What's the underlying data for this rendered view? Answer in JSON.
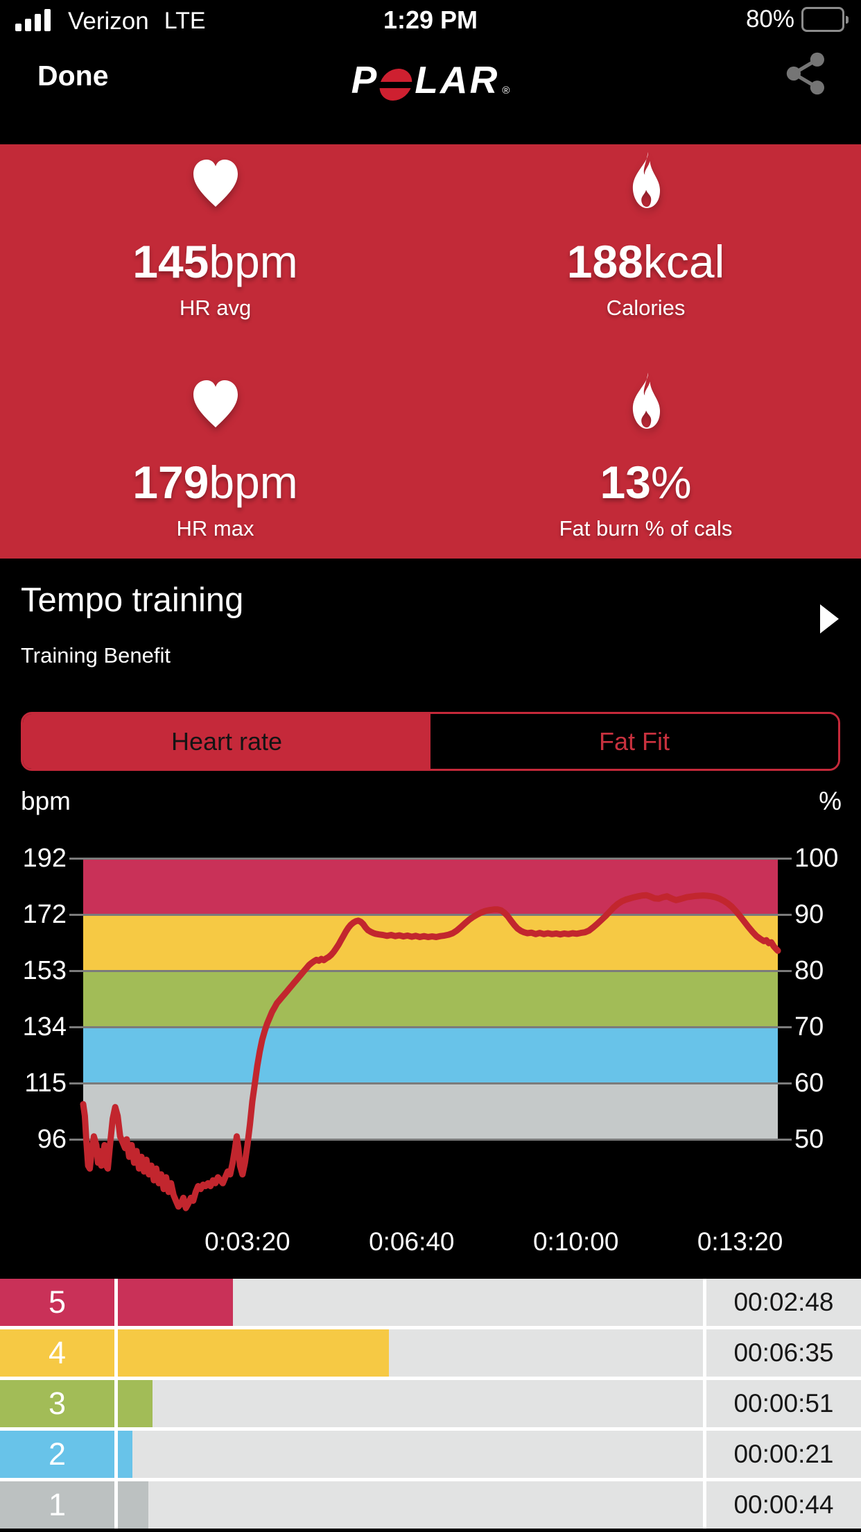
{
  "status_bar": {
    "carrier": "Verizon",
    "network": "LTE",
    "time": "1:29 PM",
    "battery_percent": "80%",
    "battery_level": 0.8,
    "signal_bars": 4
  },
  "nav": {
    "done_label": "Done",
    "logo": {
      "before_o": "P",
      "after_o": "LAR",
      "registered": "®",
      "o_color": "#ce2030"
    }
  },
  "stats": {
    "panel_color": "#c22a38",
    "cells": [
      {
        "icon": "heart-icon",
        "value": "145",
        "unit": "bpm",
        "label": "HR avg"
      },
      {
        "icon": "flame-icon",
        "value": "188",
        "unit": "kcal",
        "label": "Calories"
      },
      {
        "icon": "heart-icon",
        "value": "179",
        "unit": "bpm",
        "label": "HR max"
      },
      {
        "icon": "flame-icon",
        "value": "13",
        "unit": "%",
        "label": "Fat burn % of cals"
      }
    ]
  },
  "session": {
    "title": "Tempo training",
    "subtitle": "Training Benefit"
  },
  "tabs": {
    "accent": "#c5293a",
    "options": [
      {
        "label": "Heart rate",
        "selected": true
      },
      {
        "label": "Fat Fit",
        "selected": false
      }
    ]
  },
  "chart_data": {
    "type": "line",
    "title": "Heart rate curve over training session",
    "left_axis": {
      "unit": "bpm",
      "ticks": [
        192,
        172,
        153,
        134,
        115,
        96
      ]
    },
    "right_axis": {
      "unit": "%",
      "ticks": [
        100,
        90,
        80,
        70,
        60,
        50
      ]
    },
    "x_axis": {
      "tick_labels": [
        "0:03:20",
        "0:06:40",
        "0:10:00",
        "0:13:20"
      ],
      "tick_seconds": [
        200,
        400,
        600,
        800
      ]
    },
    "ylim_bpm": [
      96,
      192
    ],
    "zone_bands": [
      {
        "zone": 5,
        "color": "#c93158",
        "pct_range": [
          90,
          100
        ]
      },
      {
        "zone": 4,
        "color": "#f6c944",
        "pct_range": [
          80,
          90
        ]
      },
      {
        "zone": 3,
        "color": "#a2bc57",
        "pct_range": [
          70,
          80
        ]
      },
      {
        "zone": 2,
        "color": "#68c3e9",
        "pct_range": [
          60,
          70
        ]
      },
      {
        "zone": 1,
        "color": "#c5c9c9",
        "pct_range": [
          50,
          60
        ]
      }
    ],
    "line_color": "#c2262e",
    "gridline_color": "#7b7b7b",
    "series": [
      {
        "name": "heart_rate_bpm",
        "points": [
          [
            0,
            108
          ],
          [
            2,
            104
          ],
          [
            4,
            95
          ],
          [
            6,
            87
          ],
          [
            8,
            86
          ],
          [
            10,
            91
          ],
          [
            13,
            97
          ],
          [
            16,
            94
          ],
          [
            18,
            88
          ],
          [
            20,
            92
          ],
          [
            22,
            87
          ],
          [
            24,
            90
          ],
          [
            26,
            94
          ],
          [
            28,
            87
          ],
          [
            30,
            86
          ],
          [
            33,
            95
          ],
          [
            36,
            103
          ],
          [
            39,
            107
          ],
          [
            42,
            104
          ],
          [
            45,
            97
          ],
          [
            48,
            95
          ],
          [
            51,
            93
          ],
          [
            53,
            96
          ],
          [
            56,
            90
          ],
          [
            59,
            94
          ],
          [
            62,
            88
          ],
          [
            65,
            92
          ],
          [
            68,
            86
          ],
          [
            71,
            90
          ],
          [
            74,
            85
          ],
          [
            77,
            89
          ],
          [
            80,
            84
          ],
          [
            83,
            87
          ],
          [
            86,
            82
          ],
          [
            89,
            86
          ],
          [
            92,
            81
          ],
          [
            95,
            84
          ],
          [
            98,
            79
          ],
          [
            101,
            83
          ],
          [
            104,
            78
          ],
          [
            107,
            81
          ],
          [
            110,
            77
          ],
          [
            113,
            75
          ],
          [
            116,
            73
          ],
          [
            119,
            74
          ],
          [
            122,
            76
          ],
          [
            125,
            72.5
          ],
          [
            128,
            74
          ],
          [
            131,
            76
          ],
          [
            134,
            75
          ],
          [
            137,
            78
          ],
          [
            140,
            80
          ],
          [
            143,
            79
          ],
          [
            146,
            80.5
          ],
          [
            149,
            80
          ],
          [
            152,
            81
          ],
          [
            155,
            80
          ],
          [
            158,
            82
          ],
          [
            161,
            81
          ],
          [
            164,
            83
          ],
          [
            167,
            82
          ],
          [
            170,
            81
          ],
          [
            173,
            83
          ],
          [
            176,
            85
          ],
          [
            179,
            84
          ],
          [
            182,
            88
          ],
          [
            185,
            93
          ],
          [
            187,
            97
          ],
          [
            189,
            93
          ],
          [
            191,
            87
          ],
          [
            194,
            84
          ],
          [
            197,
            88
          ],
          [
            200,
            94
          ],
          [
            203,
            101
          ],
          [
            206,
            109
          ],
          [
            209,
            115
          ],
          [
            212,
            121
          ],
          [
            215,
            126
          ],
          [
            218,
            130
          ],
          [
            221,
            133
          ],
          [
            224,
            135.5
          ],
          [
            227,
            137.5
          ],
          [
            230,
            139.5
          ],
          [
            233,
            141
          ],
          [
            236,
            142.5
          ],
          [
            239,
            143.5
          ],
          [
            242,
            144.5
          ],
          [
            245,
            145.5
          ],
          [
            248,
            146.5
          ],
          [
            251,
            147.5
          ],
          [
            254,
            148.5
          ],
          [
            257,
            149.5
          ],
          [
            260,
            150.5
          ],
          [
            263,
            151.5
          ],
          [
            266,
            152.5
          ],
          [
            269,
            153.5
          ],
          [
            272,
            154.5
          ],
          [
            275,
            155.5
          ],
          [
            278,
            156.2
          ],
          [
            281,
            156.8
          ],
          [
            284,
            157.3
          ],
          [
            287,
            157
          ],
          [
            290,
            157.6
          ],
          [
            293,
            157.2
          ],
          [
            296,
            157.8
          ],
          [
            299,
            158.3
          ],
          [
            302,
            159
          ],
          [
            305,
            160
          ],
          [
            308,
            161.2
          ],
          [
            311,
            162.5
          ],
          [
            314,
            164
          ],
          [
            317,
            165.5
          ],
          [
            320,
            167
          ],
          [
            323,
            168.3
          ],
          [
            326,
            169.3
          ],
          [
            329,
            170
          ],
          [
            332,
            170.5
          ],
          [
            335,
            170.7
          ],
          [
            338,
            170.3
          ],
          [
            341,
            169.5
          ],
          [
            344,
            168.3
          ],
          [
            347,
            167.4
          ],
          [
            350,
            166.9
          ],
          [
            353,
            166.5
          ],
          [
            356,
            166.2
          ],
          [
            360,
            166
          ],
          [
            365,
            165.8
          ],
          [
            370,
            165.5
          ],
          [
            375,
            165.8
          ],
          [
            380,
            165.4
          ],
          [
            385,
            165.7
          ],
          [
            390,
            165.3
          ],
          [
            395,
            165.6
          ],
          [
            400,
            165.2
          ],
          [
            405,
            165.5
          ],
          [
            410,
            165.1
          ],
          [
            415,
            165.4
          ],
          [
            420,
            165.1
          ],
          [
            425,
            165.3
          ],
          [
            430,
            165.1
          ],
          [
            435,
            165.4
          ],
          [
            440,
            165.6
          ],
          [
            445,
            165.9
          ],
          [
            450,
            166.4
          ],
          [
            455,
            167.3
          ],
          [
            460,
            168.5
          ],
          [
            465,
            169.8
          ],
          [
            470,
            171
          ],
          [
            475,
            172
          ],
          [
            480,
            172.8
          ],
          [
            485,
            173.5
          ],
          [
            490,
            174
          ],
          [
            495,
            174.3
          ],
          [
            500,
            174.5
          ],
          [
            505,
            174.5
          ],
          [
            509,
            174.2
          ],
          [
            513,
            173.4
          ],
          [
            517,
            172.2
          ],
          [
            521,
            170.7
          ],
          [
            525,
            169.2
          ],
          [
            529,
            168
          ],
          [
            533,
            167.2
          ],
          [
            537,
            166.7
          ],
          [
            541,
            166.4
          ],
          [
            546,
            166.6
          ],
          [
            551,
            166.1
          ],
          [
            556,
            166.5
          ],
          [
            561,
            166.1
          ],
          [
            566,
            166.4
          ],
          [
            571,
            166.1
          ],
          [
            576,
            166.3
          ],
          [
            581,
            166
          ],
          [
            586,
            166.3
          ],
          [
            591,
            166.1
          ],
          [
            596,
            166.4
          ],
          [
            601,
            166.2
          ],
          [
            606,
            166.5
          ],
          [
            611,
            166.7
          ],
          [
            616,
            167.3
          ],
          [
            621,
            168.4
          ],
          [
            626,
            169.6
          ],
          [
            631,
            170.9
          ],
          [
            636,
            172.2
          ],
          [
            641,
            173.7
          ],
          [
            646,
            175.2
          ],
          [
            651,
            176.4
          ],
          [
            656,
            177.3
          ],
          [
            661,
            177.9
          ],
          [
            666,
            178.3
          ],
          [
            671,
            178.7
          ],
          [
            676,
            179
          ],
          [
            681,
            179.3
          ],
          [
            686,
            179.4
          ],
          [
            691,
            178.9
          ],
          [
            696,
            178.3
          ],
          [
            701,
            178.2
          ],
          [
            706,
            178.7
          ],
          [
            711,
            179
          ],
          [
            714,
            178.6
          ],
          [
            718,
            178.1
          ],
          [
            722,
            177.7
          ],
          [
            726,
            178
          ],
          [
            730,
            178.3
          ],
          [
            735,
            178.7
          ],
          [
            740,
            178.9
          ],
          [
            745,
            179.1
          ],
          [
            750,
            179.2
          ],
          [
            755,
            179.3
          ],
          [
            760,
            179.2
          ],
          [
            765,
            179
          ],
          [
            770,
            178.7
          ],
          [
            775,
            178.2
          ],
          [
            780,
            177.5
          ],
          [
            785,
            176.6
          ],
          [
            790,
            175.4
          ],
          [
            795,
            173.9
          ],
          [
            800,
            172.2
          ],
          [
            805,
            170.4
          ],
          [
            810,
            168.6
          ],
          [
            815,
            166.9
          ],
          [
            820,
            165.4
          ],
          [
            825,
            164.4
          ],
          [
            829,
            163.7
          ],
          [
            832,
            164
          ],
          [
            835,
            163
          ],
          [
            838,
            163.3
          ],
          [
            841,
            161.9
          ],
          [
            844,
            161
          ],
          [
            846,
            160.4
          ]
        ]
      }
    ]
  },
  "zone_table": {
    "track_color": "#e2e3e3",
    "rows": [
      {
        "zone": "5",
        "color": "#c93158",
        "duration": "00:02:48",
        "seconds": 168
      },
      {
        "zone": "4",
        "color": "#f6c944",
        "duration": "00:06:35",
        "seconds": 395
      },
      {
        "zone": "3",
        "color": "#a2bc57",
        "duration": "00:00:51",
        "seconds": 51
      },
      {
        "zone": "2",
        "color": "#68c3e9",
        "duration": "00:00:21",
        "seconds": 21
      },
      {
        "zone": "1",
        "color": "#bcc1c1",
        "duration": "00:00:44",
        "seconds": 44
      }
    ]
  }
}
